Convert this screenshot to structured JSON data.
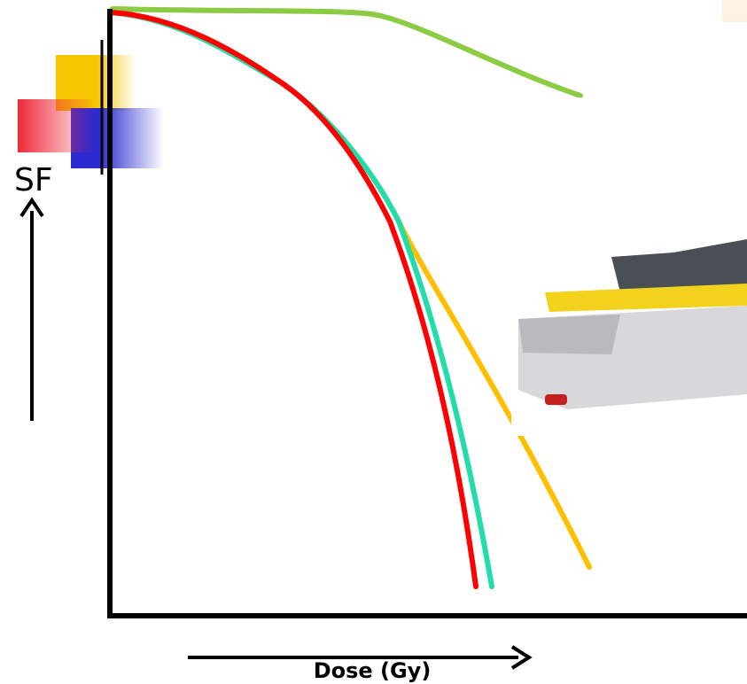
{
  "y_label": "SF",
  "x_label": "Dose (Gy)"
}
